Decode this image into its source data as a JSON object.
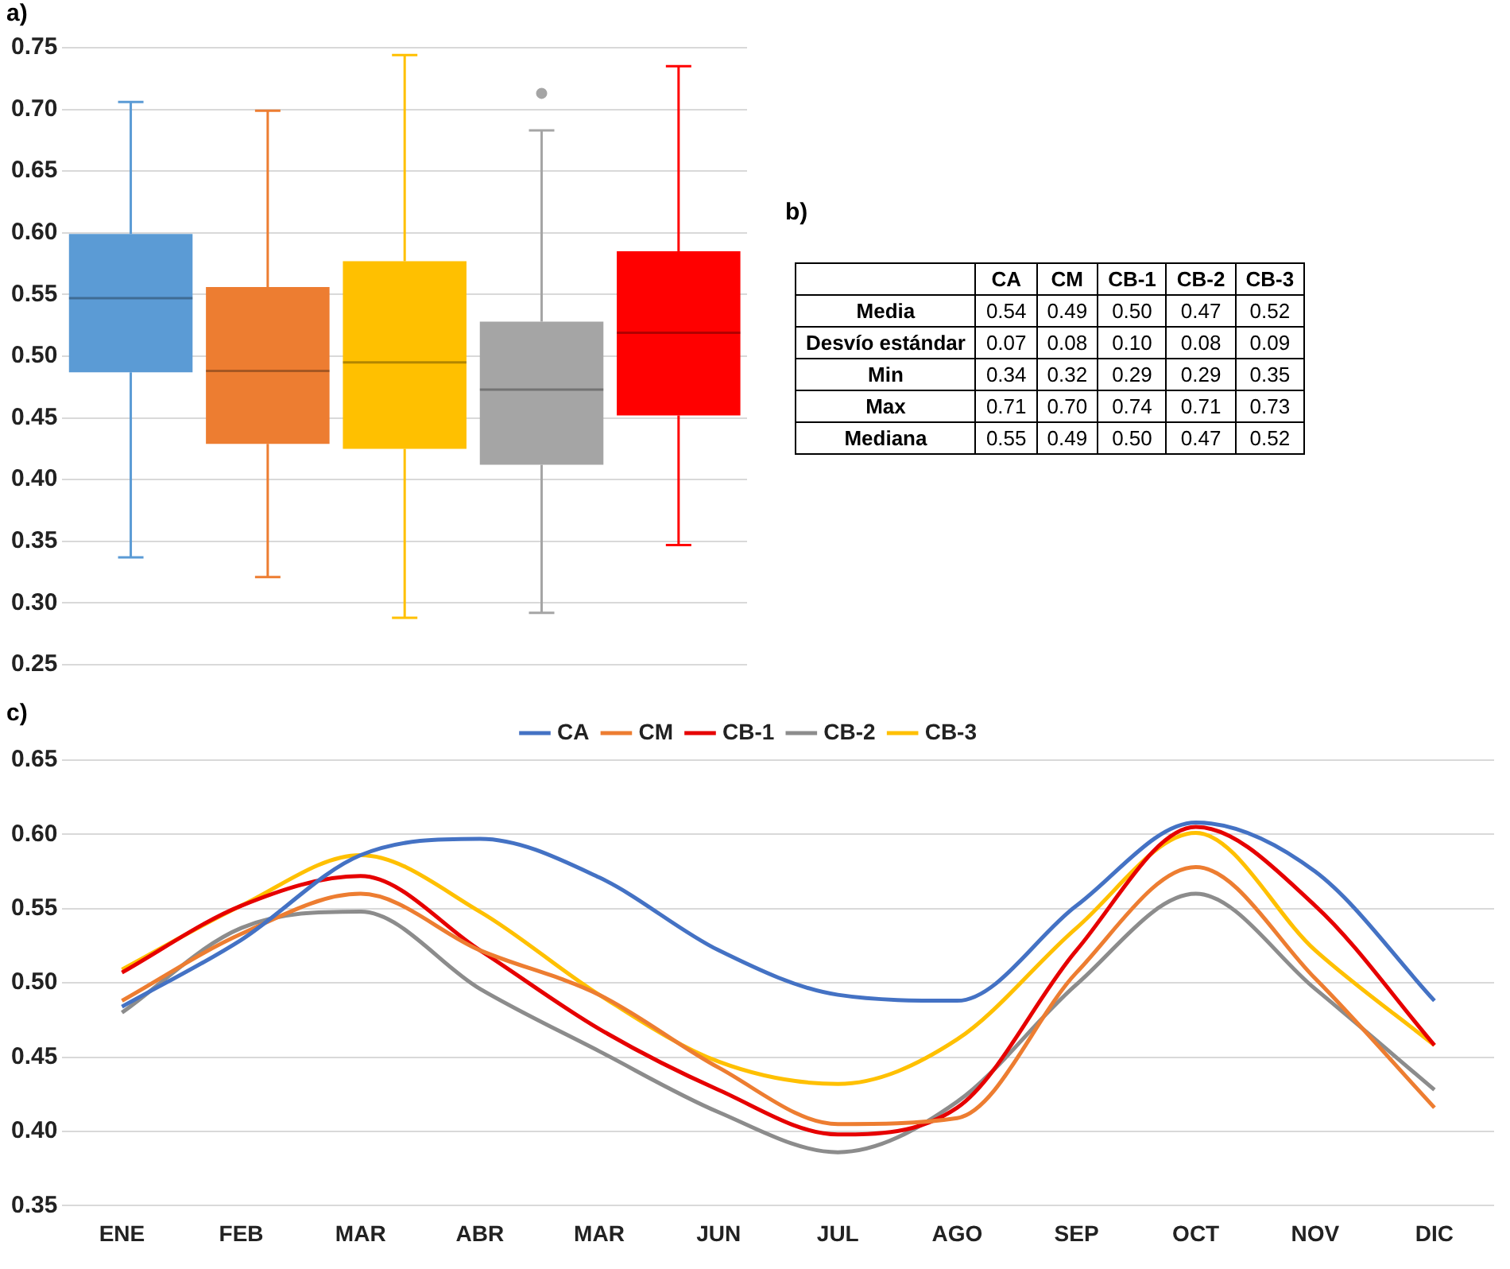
{
  "chart_data": [
    {
      "type": "box",
      "title": "a)",
      "categories": [
        null,
        null,
        null,
        null,
        null
      ],
      "colors": [
        "#5b9bd5",
        "#ed7d31",
        "#ffc000",
        "#a5a5a5",
        "#ff0000"
      ],
      "boxes": [
        {
          "low": 0.337,
          "q1": 0.487,
          "median": 0.547,
          "q3": 0.599,
          "high": 0.706
        },
        {
          "low": 0.321,
          "q1": 0.429,
          "median": 0.488,
          "q3": 0.556,
          "high": 0.699
        },
        {
          "low": 0.288,
          "q1": 0.425,
          "median": 0.495,
          "q3": 0.577,
          "high": 0.744
        },
        {
          "low": 0.292,
          "q1": 0.412,
          "median": 0.473,
          "q3": 0.528,
          "high": 0.683,
          "outliers": [
            0.713
          ]
        },
        {
          "low": 0.347,
          "q1": 0.452,
          "median": 0.519,
          "q3": 0.585,
          "high": 0.735
        }
      ],
      "ylim": [
        0.25,
        0.75
      ],
      "yticks": [
        0.25,
        {
          "value": 0.3,
          "label": "0.30"
        },
        0.35,
        {
          "value": 0.4,
          "label": "0.40"
        },
        0.45,
        {
          "value": 0.5,
          "label": "0.50"
        },
        0.55,
        {
          "value": 0.6,
          "label": "0.60"
        },
        0.65,
        {
          "value": 0.7,
          "label": "0.70"
        },
        0.75
      ],
      "grid": "y",
      "tick_labels": "y",
      "legend": false
    },
    {
      "type": "other",
      "title": "b)",
      "categories": [
        "CA",
        "CM",
        "CB-1",
        "CB-2",
        "CB-3"
      ],
      "y_categories": [
        "Media",
        "Desvío estándar",
        "Min",
        "Max",
        "Mediana"
      ],
      "cell_labels": [
        [
          "0.54",
          "0.49",
          "0.50",
          "0.47",
          "0.52"
        ],
        [
          "0.07",
          "0.08",
          "0.10",
          "0.08",
          "0.09"
        ],
        [
          "0.34",
          "0.32",
          "0.29",
          "0.29",
          "0.35"
        ],
        [
          "0.71",
          "0.70",
          "0.74",
          "0.71",
          "0.73"
        ],
        [
          "0.55",
          "0.49",
          "0.50",
          "0.47",
          "0.52"
        ]
      ]
    },
    {
      "type": "line",
      "title": "c)",
      "categories": [
        "ENE",
        "FEB",
        "MAR",
        "ABR",
        "MAR",
        "JUN",
        "JUL",
        "AGO",
        "SEP",
        "OCT",
        "NOV",
        "DIC"
      ],
      "series": [
        {
          "name": "CA",
          "color": "#4472c4",
          "values": [
            0.484,
            0.529,
            0.586,
            0.597,
            0.571,
            0.522,
            0.492,
            0.488,
            0.552,
            0.608,
            0.575,
            0.488
          ]
        },
        {
          "name": "CM",
          "color": "#ed7d31",
          "values": [
            0.488,
            0.533,
            0.56,
            0.522,
            0.492,
            0.443,
            0.405,
            0.409,
            0.507,
            0.578,
            0.503,
            0.416
          ]
        },
        {
          "name": "CB-1",
          "color": "#e60000",
          "values": [
            0.507,
            0.552,
            0.572,
            0.522,
            0.469,
            0.428,
            0.398,
            0.416,
            0.522,
            0.605,
            0.552,
            0.458
          ]
        },
        {
          "name": "CB-2",
          "color": "#8c8c8c",
          "values": [
            0.48,
            0.537,
            0.548,
            0.496,
            0.454,
            0.413,
            0.386,
            0.42,
            0.499,
            0.56,
            0.496,
            0.428
          ]
        },
        {
          "name": "CB-3",
          "color": "#ffc000",
          "values": [
            0.509,
            0.552,
            0.586,
            0.548,
            0.492,
            0.447,
            0.432,
            0.462,
            0.537,
            0.601,
            0.522,
            0.458
          ]
        }
      ],
      "ylim": [
        0.35,
        0.65
      ],
      "yticks": [
        0.35,
        {
          "value": 0.4,
          "label": "0.40"
        },
        0.45,
        {
          "value": 0.5,
          "label": "0.50"
        },
        0.55,
        {
          "value": 0.6,
          "label": "0.60"
        },
        0.65
      ],
      "grid": "y",
      "legend": "top",
      "marker": "none",
      "line_style": "solid"
    }
  ]
}
